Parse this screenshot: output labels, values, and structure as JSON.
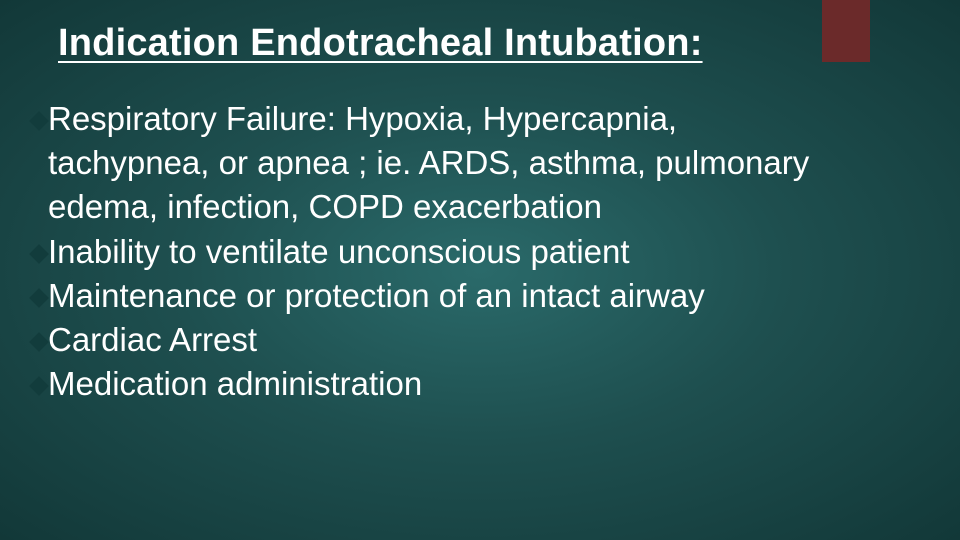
{
  "slide": {
    "title": "Indication Endotracheal Intubation:",
    "accent_color": "#6b2a2a",
    "background_gradient": {
      "inner": "#2a6a6a",
      "mid": "#1e4f4f",
      "outer": "#123838"
    },
    "bullet_diamond_color": "#123c3c",
    "text_color": "#ffffff",
    "title_fontsize": 38,
    "body_fontsize": 33,
    "bullets": [
      {
        "lines": [
          "Respiratory Failure: Hypoxia, Hypercapnia,",
          "tachypnea, or apnea ; ie. ARDS, asthma, pulmonary",
          "edema, infection, COPD exacerbation"
        ]
      },
      {
        "lines": [
          "Inability to ventilate unconscious patient"
        ]
      },
      {
        "lines": [
          "Maintenance or protection of an intact airway"
        ]
      },
      {
        "lines": [
          "Cardiac Arrest"
        ]
      },
      {
        "lines": [
          "Medication administration"
        ]
      }
    ]
  }
}
